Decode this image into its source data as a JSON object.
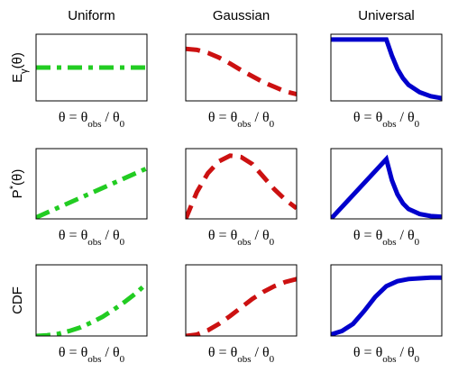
{
  "chart_data": [
    {
      "type": "line",
      "title": "Uniform",
      "ylabel": [
        {
          "text": "E"
        },
        {
          "text": "γ",
          "script": "sub"
        },
        {
          "text": "(θ)"
        }
      ],
      "xlabel": [
        {
          "text": "θ = θ"
        },
        {
          "text": "obs",
          "script": "sub"
        },
        {
          "text": " / θ"
        },
        {
          "text": "0",
          "script": "sub"
        }
      ],
      "xlim": [
        0,
        1
      ],
      "ylim": [
        0,
        1
      ],
      "x": [
        0,
        0.5,
        1
      ],
      "series": [
        {
          "color": "#22cc22",
          "dash": "dashdot",
          "values": [
            0.5,
            0.5,
            0.5
          ]
        }
      ]
    },
    {
      "type": "line",
      "title": "Gaussian",
      "xlabel": [
        {
          "text": "θ = θ"
        },
        {
          "text": "obs",
          "script": "sub"
        },
        {
          "text": " / θ"
        },
        {
          "text": "0",
          "script": "sub"
        }
      ],
      "xlim": [
        0,
        1
      ],
      "ylim": [
        0,
        1
      ],
      "x": [
        0,
        0.1,
        0.2,
        0.3,
        0.4,
        0.5,
        0.6,
        0.7,
        0.8,
        0.9,
        1
      ],
      "series": [
        {
          "color": "#cc1111",
          "dash": "dashed",
          "values": [
            0.78,
            0.765,
            0.72,
            0.65,
            0.56,
            0.46,
            0.37,
            0.28,
            0.21,
            0.14,
            0.1
          ]
        }
      ]
    },
    {
      "type": "line",
      "title": "Universal",
      "xlabel": [
        {
          "text": "θ = θ"
        },
        {
          "text": "obs",
          "script": "sub"
        },
        {
          "text": " / θ"
        },
        {
          "text": "0",
          "script": "sub"
        }
      ],
      "xlim": [
        0,
        1
      ],
      "ylim": [
        0,
        1
      ],
      "x": [
        0,
        0.5,
        0.55,
        0.6,
        0.65,
        0.7,
        0.8,
        0.9,
        1
      ],
      "series": [
        {
          "color": "#0000cc",
          "dash": "solid",
          "values": [
            0.92,
            0.92,
            0.68,
            0.48,
            0.34,
            0.24,
            0.13,
            0.07,
            0.04
          ]
        }
      ]
    },
    {
      "type": "line",
      "ylabel": [
        {
          "text": "P"
        },
        {
          "text": "*",
          "script": "super"
        },
        {
          "text": "(θ)"
        }
      ],
      "xlabel": [
        {
          "text": "θ = θ"
        },
        {
          "text": "obs",
          "script": "sub"
        },
        {
          "text": " / θ"
        },
        {
          "text": "0",
          "script": "sub"
        }
      ],
      "xlim": [
        0,
        1
      ],
      "ylim": [
        0,
        1
      ],
      "x": [
        0,
        1
      ],
      "series": [
        {
          "color": "#22cc22",
          "dash": "dashdot",
          "values": [
            0.02,
            0.72
          ]
        }
      ]
    },
    {
      "type": "line",
      "xlabel": [
        {
          "text": "θ = θ"
        },
        {
          "text": "obs",
          "script": "sub"
        },
        {
          "text": " / θ"
        },
        {
          "text": "0",
          "script": "sub"
        }
      ],
      "xlim": [
        0,
        1
      ],
      "ylim": [
        0,
        1
      ],
      "x": [
        0,
        0.1,
        0.2,
        0.3,
        0.4,
        0.5,
        0.6,
        0.7,
        0.8,
        0.9,
        1
      ],
      "series": [
        {
          "color": "#cc1111",
          "dash": "dashed",
          "values": [
            0,
            0.38,
            0.65,
            0.82,
            0.9,
            0.88,
            0.78,
            0.6,
            0.42,
            0.27,
            0.15
          ]
        }
      ]
    },
    {
      "type": "line",
      "xlabel": [
        {
          "text": "θ = θ"
        },
        {
          "text": "obs",
          "script": "sub"
        },
        {
          "text": " / θ"
        },
        {
          "text": "0",
          "script": "sub"
        }
      ],
      "xlim": [
        0,
        1
      ],
      "ylim": [
        0,
        1
      ],
      "x": [
        0,
        0.5,
        0.55,
        0.6,
        0.65,
        0.7,
        0.8,
        0.9,
        1
      ],
      "series": [
        {
          "color": "#0000cc",
          "dash": "solid",
          "values": [
            0,
            0.85,
            0.55,
            0.35,
            0.22,
            0.14,
            0.07,
            0.04,
            0.03
          ]
        }
      ]
    },
    {
      "type": "line",
      "ylabel": [
        {
          "text": "CDF"
        }
      ],
      "xlabel": [
        {
          "text": "θ = θ"
        },
        {
          "text": "obs",
          "script": "sub"
        },
        {
          "text": " / θ"
        },
        {
          "text": "0",
          "script": "sub"
        }
      ],
      "xlim": [
        0,
        1
      ],
      "ylim": [
        0,
        1
      ],
      "x": [
        0,
        0.1,
        0.2,
        0.3,
        0.4,
        0.5,
        0.6,
        0.7,
        0.8,
        0.9,
        1
      ],
      "series": [
        {
          "color": "#22cc22",
          "dash": "dashdot",
          "values": [
            0,
            0.01,
            0.03,
            0.07,
            0.12,
            0.19,
            0.27,
            0.37,
            0.48,
            0.6,
            0.74
          ]
        }
      ]
    },
    {
      "type": "line",
      "xlabel": [
        {
          "text": "θ = θ"
        },
        {
          "text": "obs",
          "script": "sub"
        },
        {
          "text": " / θ"
        },
        {
          "text": "0",
          "script": "sub"
        }
      ],
      "xlim": [
        0,
        1
      ],
      "ylim": [
        0,
        1
      ],
      "x": [
        0,
        0.1,
        0.2,
        0.3,
        0.4,
        0.5,
        0.6,
        0.7,
        0.8,
        0.9,
        1
      ],
      "series": [
        {
          "color": "#cc1111",
          "dash": "dashed",
          "values": [
            0,
            0.02,
            0.08,
            0.17,
            0.28,
            0.4,
            0.52,
            0.62,
            0.7,
            0.76,
            0.8
          ]
        }
      ]
    },
    {
      "type": "line",
      "xlabel": [
        {
          "text": "θ = θ"
        },
        {
          "text": "obs",
          "script": "sub"
        },
        {
          "text": " / θ"
        },
        {
          "text": "0",
          "script": "sub"
        }
      ],
      "xlim": [
        0,
        1
      ],
      "ylim": [
        0,
        1
      ],
      "x": [
        0,
        0.1,
        0.2,
        0.3,
        0.4,
        0.5,
        0.6,
        0.7,
        0.8,
        0.9,
        1
      ],
      "series": [
        {
          "color": "#0000cc",
          "dash": "solid",
          "values": [
            0.02,
            0.07,
            0.17,
            0.35,
            0.55,
            0.7,
            0.77,
            0.8,
            0.81,
            0.82,
            0.82
          ]
        }
      ]
    }
  ]
}
